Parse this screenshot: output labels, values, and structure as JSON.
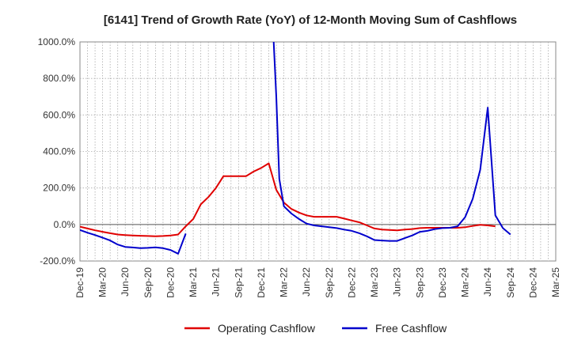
{
  "chart_data": {
    "type": "line",
    "title": "[6141]  Trend of Growth Rate (YoY) of 12-Month Moving Sum of Cashflows",
    "xlabel": "",
    "ylabel": "",
    "ylim": [
      -200,
      1000
    ],
    "yticks": [
      "1000.0%",
      "800.0%",
      "600.0%",
      "400.0%",
      "200.0%",
      "0.0%",
      "-200.0%"
    ],
    "ytick_values": [
      1000,
      800,
      600,
      400,
      200,
      0,
      -200
    ],
    "xticks": [
      "Dec-19",
      "Mar-20",
      "Jun-20",
      "Sep-20",
      "Dec-20",
      "Mar-21",
      "Jun-21",
      "Sep-21",
      "Dec-21",
      "Mar-22",
      "Jun-22",
      "Sep-22",
      "Dec-22",
      "Mar-23",
      "Jun-23",
      "Sep-23",
      "Dec-23",
      "Mar-24",
      "Jun-24",
      "Sep-24",
      "Dec-24",
      "Mar-25"
    ],
    "grid": true,
    "legend_position": "bottom",
    "colors": {
      "operating": "#e00000",
      "free": "#0000cc"
    },
    "series": [
      {
        "name": "Operating Cashflow",
        "points": [
          [
            0,
            -12
          ],
          [
            1,
            -22
          ],
          [
            2,
            -32
          ],
          [
            3,
            -40
          ],
          [
            4,
            -48
          ],
          [
            5,
            -55
          ],
          [
            6,
            -58
          ],
          [
            7,
            -60
          ],
          [
            8,
            -62
          ],
          [
            9,
            -63
          ],
          [
            10,
            -65
          ],
          [
            11,
            -63
          ],
          [
            12,
            -60
          ],
          [
            13,
            -55
          ],
          [
            14,
            -10
          ],
          [
            15,
            30
          ],
          [
            16,
            110
          ],
          [
            17,
            150
          ],
          [
            18,
            200
          ],
          [
            19,
            265
          ],
          [
            20,
            265
          ],
          [
            21,
            265
          ],
          [
            22,
            265
          ],
          [
            23,
            290
          ],
          [
            24,
            310
          ],
          [
            25,
            335
          ],
          [
            26,
            190
          ],
          [
            27,
            120
          ],
          [
            28,
            85
          ],
          [
            29,
            65
          ],
          [
            30,
            50
          ],
          [
            31,
            42
          ],
          [
            32,
            42
          ],
          [
            33,
            42
          ],
          [
            34,
            42
          ],
          [
            35,
            32
          ],
          [
            36,
            22
          ],
          [
            37,
            12
          ],
          [
            38,
            -5
          ],
          [
            39,
            -22
          ],
          [
            40,
            -28
          ],
          [
            41,
            -30
          ],
          [
            42,
            -32
          ],
          [
            43,
            -28
          ],
          [
            44,
            -25
          ],
          [
            45,
            -20
          ],
          [
            46,
            -18
          ],
          [
            47,
            -18
          ],
          [
            48,
            -18
          ],
          [
            49,
            -18
          ],
          [
            50,
            -18
          ],
          [
            51,
            -15
          ],
          [
            52,
            -8
          ],
          [
            53,
            -2
          ],
          [
            54,
            -5
          ],
          [
            55,
            -10
          ]
        ]
      },
      {
        "name": "Free Cashflow",
        "points": [
          [
            0,
            -30
          ],
          [
            1,
            -45
          ],
          [
            2,
            -58
          ],
          [
            3,
            -72
          ],
          [
            4,
            -88
          ],
          [
            5,
            -110
          ],
          [
            6,
            -123
          ],
          [
            7,
            -126
          ],
          [
            8,
            -130
          ],
          [
            9,
            -128
          ],
          [
            10,
            -125
          ],
          [
            11,
            -130
          ],
          [
            12,
            -140
          ],
          [
            13,
            -160
          ],
          [
            14,
            -50
          ]
        ]
      },
      {
        "name": "Free Cashflow",
        "points": [
          [
            25.65,
            1000
          ],
          [
            26,
            700
          ],
          [
            26.4,
            250
          ],
          [
            27,
            100
          ],
          [
            28,
            60
          ],
          [
            29,
            30
          ],
          [
            30,
            5
          ],
          [
            31,
            -5
          ],
          [
            32,
            -10
          ],
          [
            33,
            -15
          ],
          [
            34,
            -20
          ],
          [
            35,
            -28
          ],
          [
            36,
            -35
          ],
          [
            37,
            -48
          ],
          [
            38,
            -65
          ],
          [
            39,
            -85
          ],
          [
            40,
            -88
          ],
          [
            41,
            -90
          ],
          [
            42,
            -90
          ],
          [
            43,
            -75
          ],
          [
            44,
            -60
          ],
          [
            45,
            -40
          ],
          [
            46,
            -35
          ],
          [
            47,
            -25
          ],
          [
            48,
            -20
          ],
          [
            49,
            -18
          ],
          [
            50,
            -10
          ],
          [
            51,
            40
          ],
          [
            52,
            140
          ],
          [
            53,
            300
          ],
          [
            54,
            640
          ],
          [
            55,
            50
          ],
          [
            56,
            -20
          ],
          [
            57,
            -55
          ]
        ]
      }
    ]
  }
}
